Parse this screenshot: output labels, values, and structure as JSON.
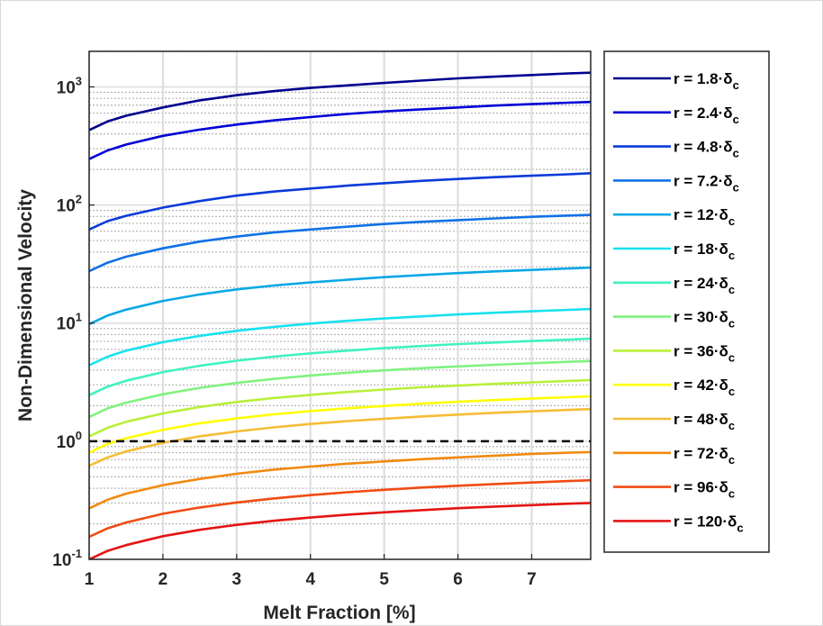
{
  "chart_data": {
    "type": "line",
    "title": "",
    "xlabel": "Melt Fraction [%]",
    "ylabel": "Non-Dimensional Velocity",
    "xlim": [
      1,
      7.8
    ],
    "ylim": [
      0.1,
      2000
    ],
    "yscale": "log",
    "grid": true,
    "minor_grid": true,
    "legend_position": "outside-right",
    "x_ticks": [
      1,
      2,
      3,
      4,
      5,
      6,
      7
    ],
    "y_ticks": [
      {
        "value": 0.1,
        "base": "10",
        "exp": "-1"
      },
      {
        "value": 1,
        "base": "10",
        "exp": "0"
      },
      {
        "value": 10,
        "base": "10",
        "exp": "1"
      },
      {
        "value": 100,
        "base": "10",
        "exp": "2"
      },
      {
        "value": 1000,
        "base": "10",
        "exp": "3"
      }
    ],
    "reference_line": {
      "y": 1,
      "style": "dashed",
      "color": "#000000"
    },
    "x": [
      1,
      1.25,
      1.5,
      2,
      2.5,
      3,
      3.5,
      4,
      4.5,
      5,
      5.5,
      6,
      6.5,
      7,
      7.5,
      7.8
    ],
    "series": [
      {
        "name": "r = 1.8·δ",
        "subscript": "c",
        "color": "#00008f",
        "values": [
          430,
          510,
          570,
          670,
          770,
          850,
          920,
          980,
          1030,
          1080,
          1130,
          1180,
          1220,
          1260,
          1300,
          1320
        ]
      },
      {
        "name": "r = 2.4·δ",
        "subscript": "c",
        "color": "#0000d6",
        "values": [
          245,
          290,
          325,
          385,
          435,
          480,
          520,
          555,
          590,
          620,
          645,
          670,
          695,
          715,
          735,
          745
        ]
      },
      {
        "name": "r = 4.8·δ",
        "subscript": "c",
        "color": "#0a3ad9",
        "values": [
          62,
          73,
          81,
          95,
          108,
          120,
          130,
          138,
          146,
          153,
          160,
          166,
          172,
          177,
          182,
          186
        ]
      },
      {
        "name": "r = 7.2·δ",
        "subscript": "c",
        "color": "#1071e6",
        "values": [
          27.5,
          32.5,
          36.5,
          43,
          49,
          54,
          58.5,
          62,
          65.5,
          69,
          72,
          74.5,
          77,
          79.5,
          81.5,
          82.5
        ]
      },
      {
        "name": "r = 12·δ",
        "subscript": "c",
        "color": "#0aa8e6",
        "values": [
          9.8,
          11.6,
          13,
          15.4,
          17.5,
          19.3,
          20.8,
          22.1,
          23.3,
          24.5,
          25.5,
          26.5,
          27.4,
          28.2,
          29,
          29.5
        ]
      },
      {
        "name": "r = 18·δ",
        "subscript": "c",
        "color": "#19e1f0",
        "values": [
          4.4,
          5.2,
          5.85,
          6.9,
          7.8,
          8.6,
          9.3,
          9.9,
          10.45,
          10.95,
          11.4,
          11.85,
          12.25,
          12.6,
          12.95,
          13.15
        ]
      },
      {
        "name": "r = 24·δ",
        "subscript": "c",
        "color": "#40f2c0",
        "values": [
          2.45,
          2.9,
          3.25,
          3.85,
          4.35,
          4.8,
          5.2,
          5.55,
          5.85,
          6.15,
          6.4,
          6.65,
          6.85,
          7.05,
          7.25,
          7.4
        ]
      },
      {
        "name": "r = 30·δ",
        "subscript": "c",
        "color": "#80f280",
        "values": [
          1.6,
          1.9,
          2.12,
          2.5,
          2.83,
          3.12,
          3.37,
          3.6,
          3.8,
          3.98,
          4.15,
          4.3,
          4.44,
          4.57,
          4.7,
          4.78
        ]
      },
      {
        "name": "r = 36·δ",
        "subscript": "c",
        "color": "#b8f03a",
        "values": [
          1.1,
          1.3,
          1.46,
          1.72,
          1.95,
          2.15,
          2.32,
          2.47,
          2.61,
          2.74,
          2.86,
          2.96,
          3.06,
          3.15,
          3.24,
          3.29
        ]
      },
      {
        "name": "r = 42·δ",
        "subscript": "c",
        "color": "#ffff00",
        "values": [
          0.8,
          0.95,
          1.06,
          1.25,
          1.42,
          1.56,
          1.69,
          1.8,
          1.9,
          1.99,
          2.08,
          2.16,
          2.23,
          2.3,
          2.36,
          2.4
        ]
      },
      {
        "name": "r = 48·δ",
        "subscript": "c",
        "color": "#f5bd35",
        "values": [
          0.62,
          0.73,
          0.82,
          0.97,
          1.1,
          1.21,
          1.31,
          1.4,
          1.48,
          1.55,
          1.62,
          1.68,
          1.74,
          1.79,
          1.84,
          1.87
        ]
      },
      {
        "name": "r = 72·δ",
        "subscript": "c",
        "color": "#f28a0f",
        "values": [
          0.27,
          0.32,
          0.36,
          0.425,
          0.48,
          0.53,
          0.575,
          0.61,
          0.645,
          0.675,
          0.705,
          0.73,
          0.755,
          0.78,
          0.8,
          0.81
        ]
      },
      {
        "name": "r = 96·δ",
        "subscript": "c",
        "color": "#f04b12",
        "values": [
          0.155,
          0.183,
          0.205,
          0.243,
          0.275,
          0.303,
          0.328,
          0.35,
          0.37,
          0.388,
          0.405,
          0.42,
          0.434,
          0.447,
          0.46,
          0.467
        ]
      },
      {
        "name": "r = 120·δ",
        "subscript": "c",
        "color": "#e51414",
        "values": [
          0.1,
          0.118,
          0.132,
          0.157,
          0.178,
          0.196,
          0.212,
          0.226,
          0.239,
          0.25,
          0.261,
          0.271,
          0.28,
          0.288,
          0.296,
          0.3
        ]
      }
    ]
  }
}
